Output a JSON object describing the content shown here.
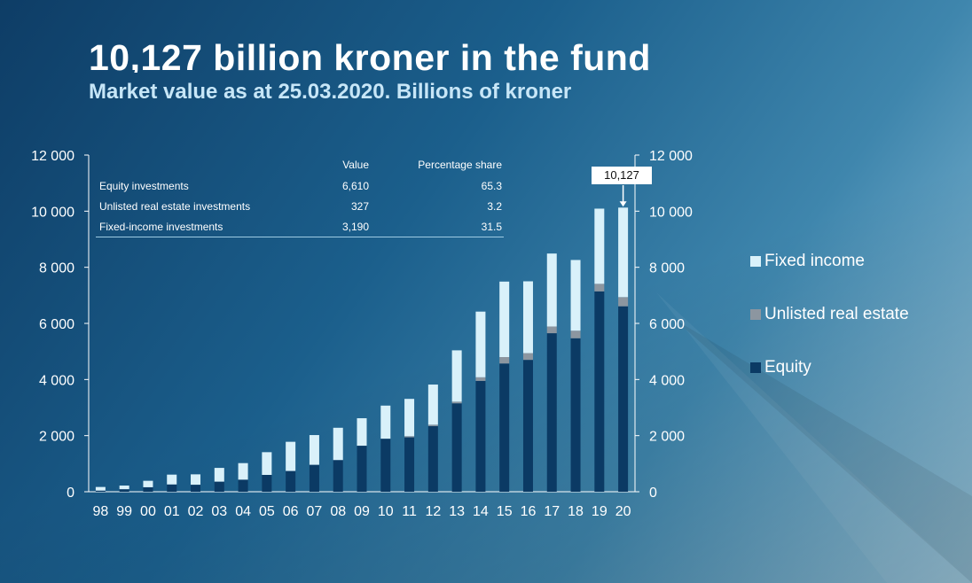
{
  "slide": {
    "title": "10,127 billion kroner in the fund",
    "subtitle": "Market value as at 25.03.2020. Billions of kroner"
  },
  "table": {
    "headers": [
      "",
      "Value",
      "Percentage share"
    ],
    "rows": [
      [
        "Equity investments",
        "6,610",
        "65.3"
      ],
      [
        "Unlisted real estate investments",
        "327",
        "3.2"
      ],
      [
        "Fixed-income investments",
        "3,190",
        "31.5"
      ]
    ]
  },
  "callout": {
    "text": "10,127"
  },
  "chart_data": {
    "type": "bar",
    "stacked": true,
    "categories": [
      "98",
      "99",
      "00",
      "01",
      "02",
      "03",
      "04",
      "05",
      "06",
      "07",
      "08",
      "09",
      "10",
      "11",
      "12",
      "13",
      "14",
      "15",
      "16",
      "17",
      "18",
      "19",
      "20"
    ],
    "series": [
      {
        "name": "Equity",
        "color": "#0b3a64",
        "values": [
          40,
          90,
          160,
          260,
          250,
          360,
          430,
          600,
          740,
          960,
          1130,
          1640,
          1890,
          1940,
          2340,
          3150,
          3950,
          4570,
          4700,
          5650,
          5470,
          7140,
          6610
        ]
      },
      {
        "name": "Unlisted real estate",
        "color": "#8c96a0",
        "values": [
          0,
          0,
          0,
          0,
          0,
          0,
          0,
          0,
          0,
          0,
          0,
          0,
          0,
          40,
          50,
          60,
          130,
          230,
          240,
          240,
          270,
          270,
          327
        ]
      },
      {
        "name": "Fixed income",
        "color": "#d9f1fa",
        "values": [
          130,
          130,
          230,
          350,
          370,
          490,
          590,
          810,
          1040,
          1060,
          1150,
          980,
          1180,
          1330,
          1430,
          1830,
          2340,
          2690,
          2560,
          2600,
          2520,
          2680,
          3190
        ]
      }
    ],
    "yticks": [
      "0",
      "2 000",
      "4 000",
      "6 000",
      "8 000",
      "10 000",
      "12 000"
    ],
    "ylim": [
      0,
      12000
    ],
    "grid": false,
    "legend": "right"
  }
}
